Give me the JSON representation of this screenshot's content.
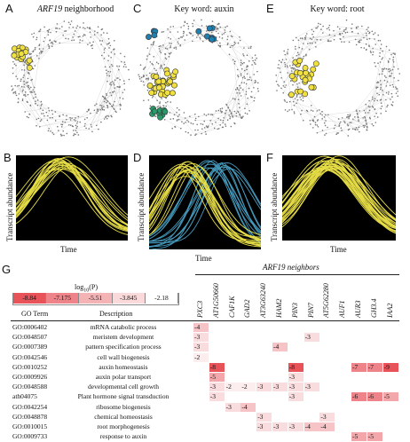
{
  "panels": {
    "A": {
      "letter": "A",
      "title": "ARF19",
      "title_suffix": " neighborhood"
    },
    "C": {
      "letter": "C",
      "title": "Key word: auxin"
    },
    "E": {
      "letter": "E",
      "title": "Key word: root"
    },
    "B": {
      "letter": "B"
    },
    "D": {
      "letter": "D"
    },
    "F": {
      "letter": "F"
    },
    "G": {
      "letter": "G"
    }
  },
  "axes": {
    "y_label": "Transcript abundance",
    "x_label": "Time"
  },
  "legend": {
    "title": "log",
    "title_sub": "10",
    "title_suffix": "(P)",
    "values": [
      "-8.84",
      "-7.175",
      "-5.51",
      "-3.845",
      "-2.18"
    ],
    "colors": [
      "#e8535a",
      "#ee8489",
      "#f4b3b5",
      "#f9d9da",
      "#ffffff"
    ]
  },
  "table": {
    "neighbors_header": "ARF19 neighbors",
    "col_go_term": "GO Term",
    "col_description": "Description",
    "genes": [
      "PXC3",
      "AT1G50660",
      "CAF1K",
      "GAD2",
      "AT3G63240",
      "HAM2",
      "PIN3",
      "PIN7",
      "AT5G62280",
      "AUF1",
      "AUR3",
      "GH3.4",
      "IAA2"
    ],
    "rows": [
      {
        "go": "GO:0006402",
        "desc": "mRNA catabolic process",
        "vals": [
          "-4",
          "",
          "",
          "",
          "",
          "",
          "",
          "",
          "",
          "",
          "",
          "",
          ""
        ]
      },
      {
        "go": "GO:0048507",
        "desc": "meristem development",
        "vals": [
          "-3",
          "",
          "",
          "",
          "",
          "",
          "",
          "-3",
          "",
          "",
          "",
          "",
          ""
        ]
      },
      {
        "go": "GO:0007389",
        "desc": "pattern specification process",
        "vals": [
          "-3",
          "",
          "",
          "",
          "",
          "-4",
          "",
          "",
          "",
          "",
          "",
          "",
          ""
        ]
      },
      {
        "go": "GO:0042546",
        "desc": "cell wall biogenesis",
        "vals": [
          "-2",
          "",
          "",
          "",
          "",
          "",
          "",
          "",
          "",
          "",
          "",
          "",
          ""
        ]
      },
      {
        "go": "GO:0010252",
        "desc": "auxin homeostasis",
        "vals": [
          "",
          "-8",
          "",
          "",
          "",
          "",
          "-8",
          "",
          "",
          "",
          "-7",
          "-7",
          "-9"
        ]
      },
      {
        "go": "GO:0009926",
        "desc": "auxin polar transport",
        "vals": [
          "",
          "-5",
          "",
          "",
          "",
          "",
          "-3",
          "",
          "",
          "",
          "",
          "",
          ""
        ]
      },
      {
        "go": "GO:0048588",
        "desc": "developmental cell growth",
        "vals": [
          "",
          "-3",
          "-2",
          "-2",
          "-3",
          "-3",
          "-3",
          "-3",
          "",
          "",
          "",
          "",
          ""
        ]
      },
      {
        "go": "ath04075",
        "desc": "Plant hormone signal transduction",
        "vals": [
          "",
          "-3",
          "",
          "",
          "",
          "",
          "-3",
          "",
          "",
          "",
          "-6",
          "-6",
          "-5"
        ]
      },
      {
        "go": "GO:0042254",
        "desc": "ribosome biogenesis",
        "vals": [
          "",
          "",
          "-3",
          "-4",
          "",
          "",
          "",
          "",
          "",
          "",
          "",
          "",
          ""
        ]
      },
      {
        "go": "GO:0048878",
        "desc": "chemical homeostasis",
        "vals": [
          "",
          "",
          "",
          "",
          "-3",
          "",
          "",
          "",
          "-3",
          "",
          "",
          "",
          ""
        ]
      },
      {
        "go": "GO:0010015",
        "desc": "root morphogenesis",
        "vals": [
          "",
          "",
          "",
          "",
          "-3",
          "-3",
          "-3",
          "-4",
          "-4",
          "",
          "",
          "",
          ""
        ]
      },
      {
        "go": "GO:0009733",
        "desc": "response to auxin",
        "vals": [
          "",
          "",
          "",
          "",
          "",
          "",
          "",
          "",
          "",
          "",
          "-5",
          "-5",
          ""
        ]
      }
    ]
  },
  "colors": {
    "curve_yellow": "#f2e84a",
    "curve_blue": "#4aa3c8",
    "node_yellow": "#f0e040",
    "node_blue": "#1f7fb0",
    "node_green": "#2a9a6a"
  }
}
